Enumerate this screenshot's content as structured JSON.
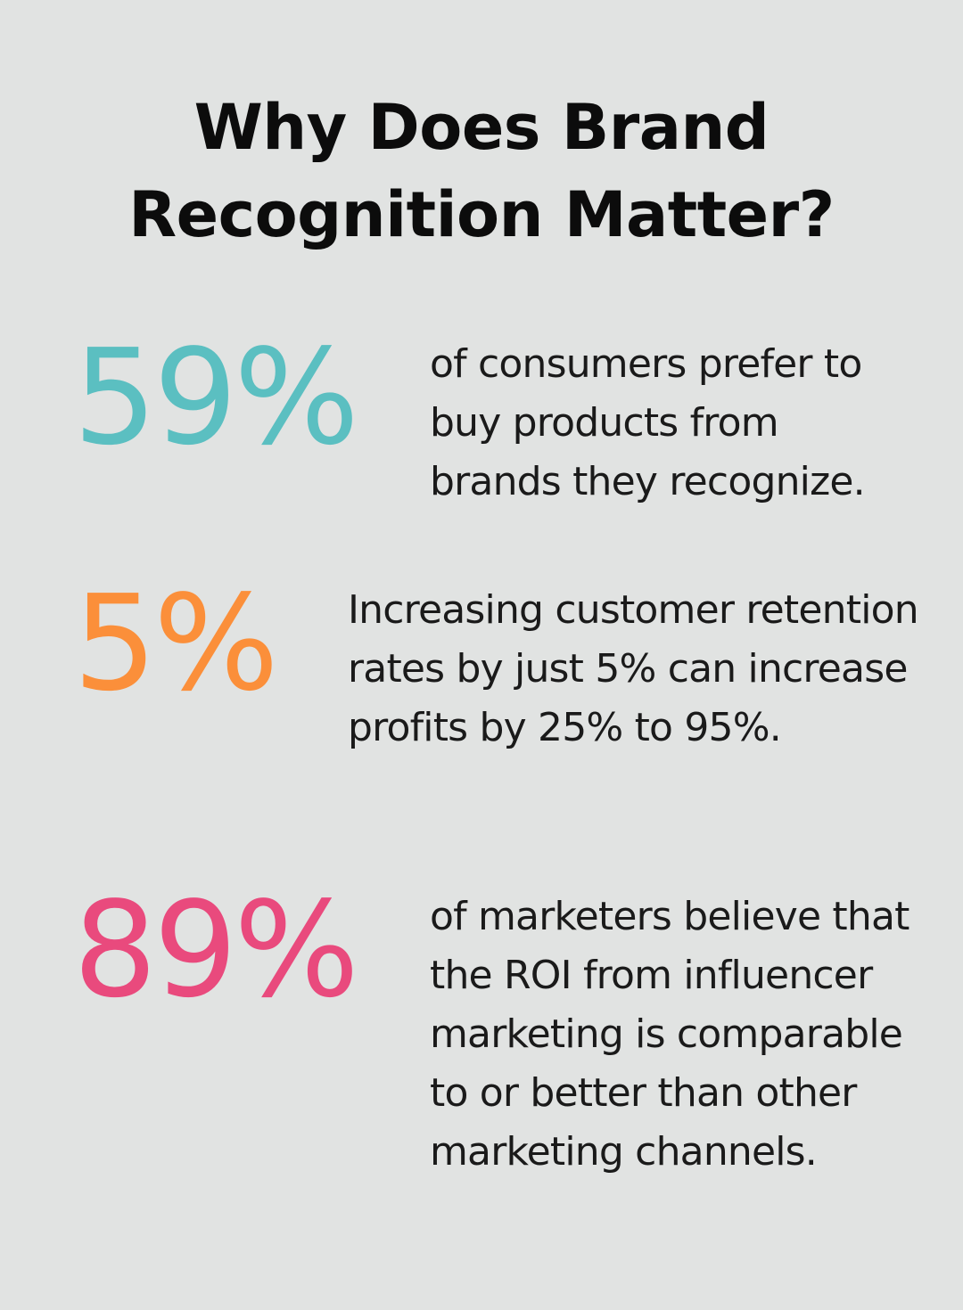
{
  "title": {
    "line1": "Why Does Brand",
    "line2": "Recognition Matter?"
  },
  "stats": [
    {
      "value": "59%",
      "text": "of consumers prefer to buy products from brands they recognize.",
      "color": "#5bbfc1"
    },
    {
      "value": "5%",
      "text": "Increasing customer retention rates by just 5% can increase profits by 25% to 95%.",
      "color": "#fb8f3a"
    },
    {
      "value": "89%",
      "text": "of marketers believe that the ROI from influencer marketing is comparable to or better than other marketing channels.",
      "color": "#e94a7d"
    }
  ]
}
